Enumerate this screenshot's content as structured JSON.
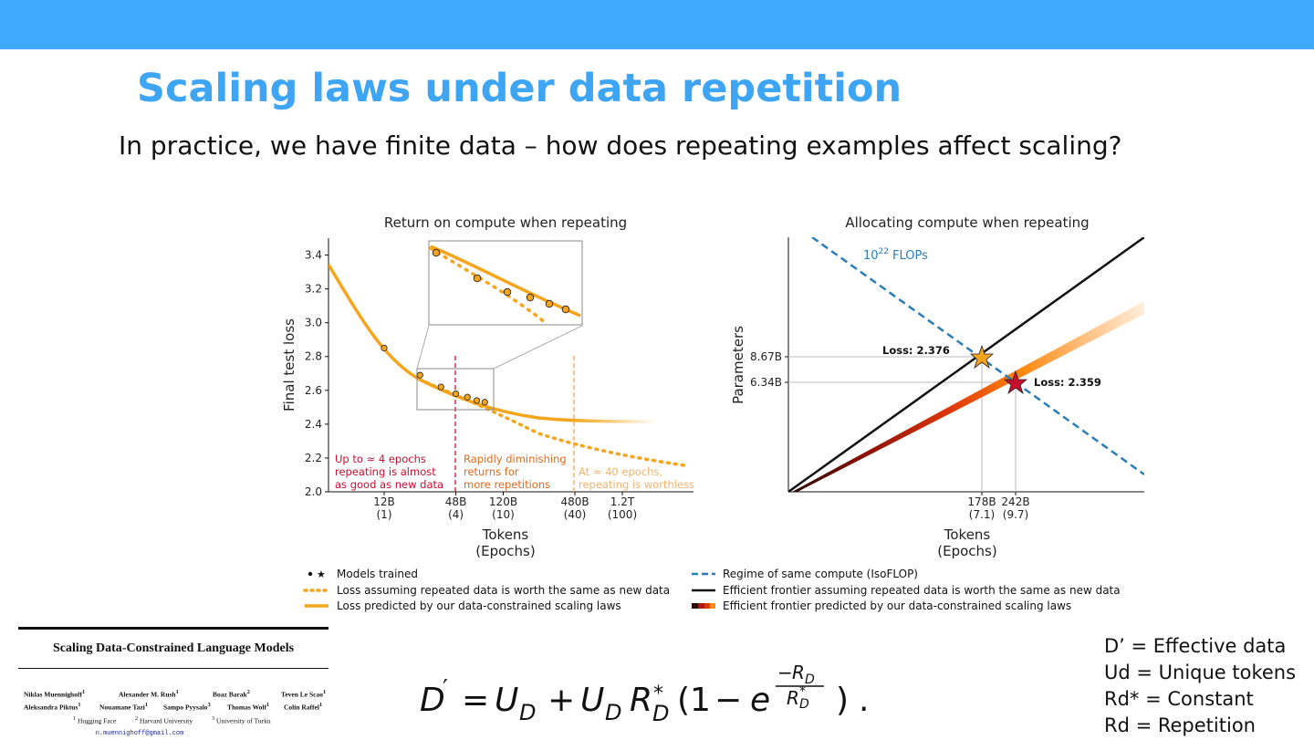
{
  "slide": {
    "title": "Scaling laws under data repetition",
    "subtitle": "In practice, we have finite data – how does repeating examples affect scaling?"
  },
  "left_chart_text": {
    "annot_red": [
      "Up to ≈ 4 epochs",
      "repeating is almost",
      "as good as new data"
    ],
    "annot_orange": [
      "Rapidly diminishing",
      "returns for",
      "more repetitions"
    ],
    "annot_light": [
      "At ≈ 40 epochs,",
      "repeating is worthless"
    ]
  },
  "right_chart_text": {
    "isoflop_label": "10",
    "isoflop_exp": "22",
    "isoflop_unit": "FLOPs",
    "loss_black": "Loss: 2.376",
    "loss_red": "Loss: 2.359"
  },
  "legend": {
    "left": [
      "Models trained",
      "Loss assuming repeated data is worth the same as new data",
      "Loss predicted by our data-constrained scaling laws"
    ],
    "right": [
      "Regime of same compute (IsoFLOP)",
      "Efficient frontier assuming repeated data is worth the same as new data",
      "Efficient frontier predicted by our data-constrained scaling laws"
    ]
  },
  "paper": {
    "title": "Scaling Data-Constrained Language Models",
    "authors_row1": [
      "Niklas Muennighoff",
      "Alexander M. Rush",
      "Boaz Barak",
      "Teven Le Scao"
    ],
    "authors_row2": [
      "Aleksandra Piktus",
      "Nouamane Tazi",
      "Sampo Pyysalo",
      "Thomas Wolf",
      "Colin Raffel"
    ],
    "affiliations": [
      "Hugging Face",
      "Harvard University",
      "University of Turku"
    ],
    "email": "n.muennighoff@gmail.com"
  },
  "definitions": [
    "D’ = Effective data",
    "Ud = Unique tokens",
    "Rd* = Constant",
    "Rd = Repetition"
  ],
  "colors": {
    "header_bar": "#3faaff",
    "title": "#3da5f4",
    "orange": "#f5a51b",
    "dark_red": "#c8102e",
    "isoflop_blue": "#2a7db5"
  },
  "chart_data": [
    {
      "type": "line",
      "title": "Return on compute when repeating",
      "xlabel": "Tokens\n(Epochs)",
      "ylabel": "Final test loss",
      "ylim": [
        2.0,
        3.5
      ],
      "x_ticks": [
        "12B\n(1)",
        "48B\n(4)",
        "120B\n(10)",
        "480B\n(40)",
        "1.2T\n(100)"
      ],
      "y_ticks": [
        "2.0",
        "2.2",
        "2.4",
        "2.6",
        "2.8",
        "3.0",
        "3.2",
        "3.4"
      ],
      "series": [
        {
          "name": "Models trained",
          "epochs": [
            1,
            2,
            3,
            4,
            5,
            6,
            7
          ],
          "loss": [
            2.85,
            2.69,
            2.62,
            2.58,
            2.56,
            2.54,
            2.53
          ]
        },
        {
          "name": "Loss assuming repeated data is worth the same as new data",
          "style": "dotted"
        },
        {
          "name": "Loss predicted by our data-constrained scaling laws",
          "style": "solid"
        }
      ],
      "vlines": [
        {
          "epochs": 4,
          "color": "#c8102e"
        },
        {
          "epochs": 40,
          "color": "#f5a05a"
        }
      ]
    },
    {
      "type": "line",
      "title": "Allocating compute when repeating",
      "xlabel": "Tokens\n(Epochs)",
      "ylabel": "Parameters",
      "x_ticks": [
        "178B\n(7.1)",
        "242B\n(9.7)"
      ],
      "y_ticks": [
        "8.67B",
        "6.34B"
      ],
      "points": [
        {
          "label": "Loss: 2.376",
          "tokens": "178B",
          "params": "8.67B",
          "marker": "star",
          "color": "#f5a51b"
        },
        {
          "label": "Loss: 2.359",
          "tokens": "242B",
          "params": "6.34B",
          "marker": "star",
          "color": "#c8102e"
        }
      ],
      "series": [
        {
          "name": "Regime of same compute (IsoFLOP)",
          "style": "dashed"
        },
        {
          "name": "Efficient frontier assuming repeated data is worth the same as new data",
          "style": "solid"
        },
        {
          "name": "Efficient frontier predicted by our data-constrained scaling laws",
          "style": "gradient"
        }
      ]
    }
  ]
}
